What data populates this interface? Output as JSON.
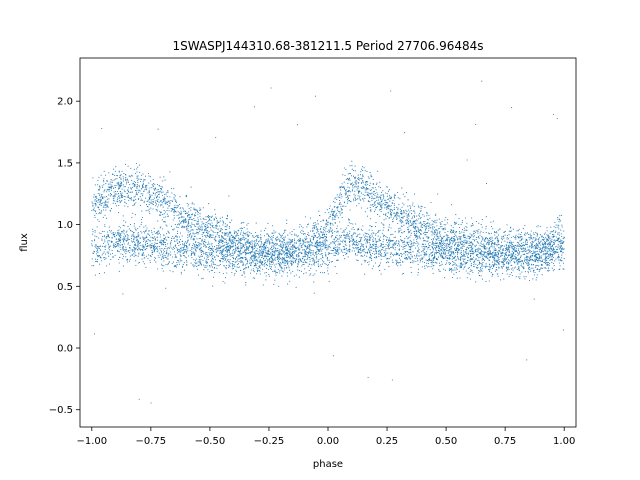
{
  "chart_data": {
    "type": "scatter",
    "title": "1SWASPJ144310.68-381211.5 Period 27706.96484s",
    "xlabel": "phase",
    "ylabel": "flux",
    "xlim": [
      -1.05,
      1.05
    ],
    "ylim": [
      -0.64,
      2.35
    ],
    "x_ticks": [
      -1.0,
      -0.75,
      -0.5,
      -0.25,
      0.0,
      0.25,
      0.5,
      0.75,
      1.0
    ],
    "x_tick_labels": [
      "−1.00",
      "−0.75",
      "−0.50",
      "−0.25",
      "0.00",
      "0.25",
      "0.50",
      "0.75",
      "1.00"
    ],
    "y_ticks": [
      -0.5,
      0.0,
      0.5,
      1.0,
      1.5,
      2.0
    ],
    "y_tick_labels": [
      "−0.5",
      "0.0",
      "0.5",
      "1.0",
      "1.5",
      "2.0"
    ],
    "grid": false,
    "legend": "none",
    "marker_color": "#1f77b4",
    "series": [
      {
        "profile_x": [
          -1.0,
          -0.9,
          -0.8,
          -0.7,
          -0.6,
          -0.5,
          -0.4,
          -0.3,
          -0.2,
          -0.1,
          0.0,
          0.05,
          0.1,
          0.2,
          0.3,
          0.4,
          0.5,
          0.6,
          0.7,
          0.8,
          0.9,
          1.0
        ],
        "profile_upper_y": [
          1.15,
          1.3,
          1.3,
          1.18,
          1.05,
          0.95,
          0.87,
          0.8,
          0.8,
          0.84,
          0.95,
          1.2,
          1.33,
          1.22,
          1.1,
          0.98,
          0.9,
          0.85,
          0.82,
          0.8,
          0.82,
          0.9
        ],
        "profile_lower_y": [
          0.82,
          0.85,
          0.85,
          0.82,
          0.8,
          0.77,
          0.75,
          0.73,
          0.72,
          0.74,
          0.78,
          0.85,
          0.85,
          0.83,
          0.8,
          0.78,
          0.76,
          0.74,
          0.73,
          0.72,
          0.74,
          0.8
        ],
        "scatter_sd": 0.14,
        "outlier_range_y": [
          -0.5,
          2.2
        ]
      }
    ]
  }
}
